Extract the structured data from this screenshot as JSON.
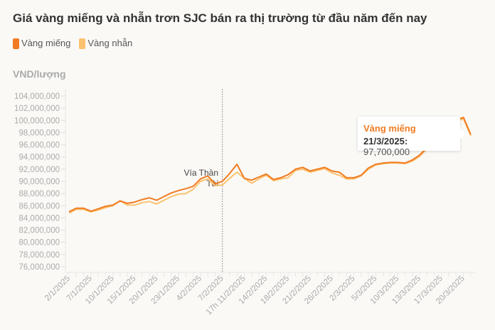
{
  "chart_data": {
    "type": "line",
    "title": "Giá vàng miếng và nhẫn trơn SJC bán ra thị trường từ đầu năm đến nay",
    "ylabel": "VND/lượng",
    "ylim": [
      76000000,
      104000000
    ],
    "yticks": [
      "104,000,000",
      "102,000,000",
      "100,000,000",
      "98,000,000",
      "96,000,000",
      "94,000,000",
      "92,000,000",
      "90,000,000",
      "88,000,000",
      "86,000,000",
      "84,000,000",
      "82,000,000",
      "80,000,000",
      "78,000,000",
      "76,000,000"
    ],
    "xtick_labels": [
      "2/1/2025",
      "7/1/2025",
      "10/1/2025",
      "15/1/2025",
      "20/1/2025",
      "23/1/2025",
      "4/2/2025",
      "7/2/2025",
      "17h 11/2/2025",
      "14/2/2025",
      "18/2/2025",
      "21/2/2025",
      "26/2/2025",
      "2/3/2025",
      "5/3/2025",
      "10/3/2025",
      "13/3/2025",
      "17/3/2025",
      "20/3/2025"
    ],
    "grid": false,
    "legend": "top-left",
    "series": [
      {
        "name": "Vàng miếng",
        "color": "#f07c22",
        "values_million": [
          85.0,
          85.6,
          85.6,
          85.1,
          85.5,
          85.9,
          86.1,
          86.8,
          86.4,
          86.6,
          87.0,
          87.3,
          86.9,
          87.5,
          88.1,
          88.5,
          88.8,
          89.2,
          90.4,
          90.9,
          89.6,
          90.0,
          91.3,
          92.8,
          90.5,
          90.2,
          90.7,
          91.2,
          90.3,
          90.6,
          91.1,
          92.0,
          92.3,
          91.7,
          92.0,
          92.3,
          91.7,
          91.5,
          90.6,
          90.6,
          91.0,
          92.2,
          92.8,
          93.0,
          93.1,
          93.1,
          93.0,
          93.5,
          94.3,
          95.5,
          97.5,
          99.0,
          99.5,
          100.0,
          100.5,
          97.7
        ]
      },
      {
        "name": "Vàng nhẫn",
        "color": "#fcc26f",
        "values_million": [
          84.8,
          85.4,
          85.4,
          85.0,
          85.3,
          85.7,
          86.0,
          86.8,
          86.1,
          86.1,
          86.5,
          86.7,
          86.3,
          86.9,
          87.5,
          87.9,
          88.0,
          88.7,
          90.0,
          90.4,
          89.3,
          89.4,
          90.5,
          91.5,
          90.5,
          89.7,
          90.4,
          91.0,
          90.1,
          90.4,
          90.6,
          91.8,
          92.0,
          91.5,
          91.8,
          92.1,
          91.4,
          91.0,
          90.4,
          90.4,
          90.9,
          92.0,
          92.7,
          92.9,
          93.0,
          93.0,
          92.9,
          93.3,
          94.1,
          95.3,
          97.3,
          98.8,
          99.3,
          99.8,
          100.3,
          97.5
        ]
      }
    ],
    "annotation": "Vía Thần Tài",
    "tooltip": {
      "series": "Vàng miếng",
      "date": "21/3/2025:",
      "value": "97,700,000"
    }
  }
}
